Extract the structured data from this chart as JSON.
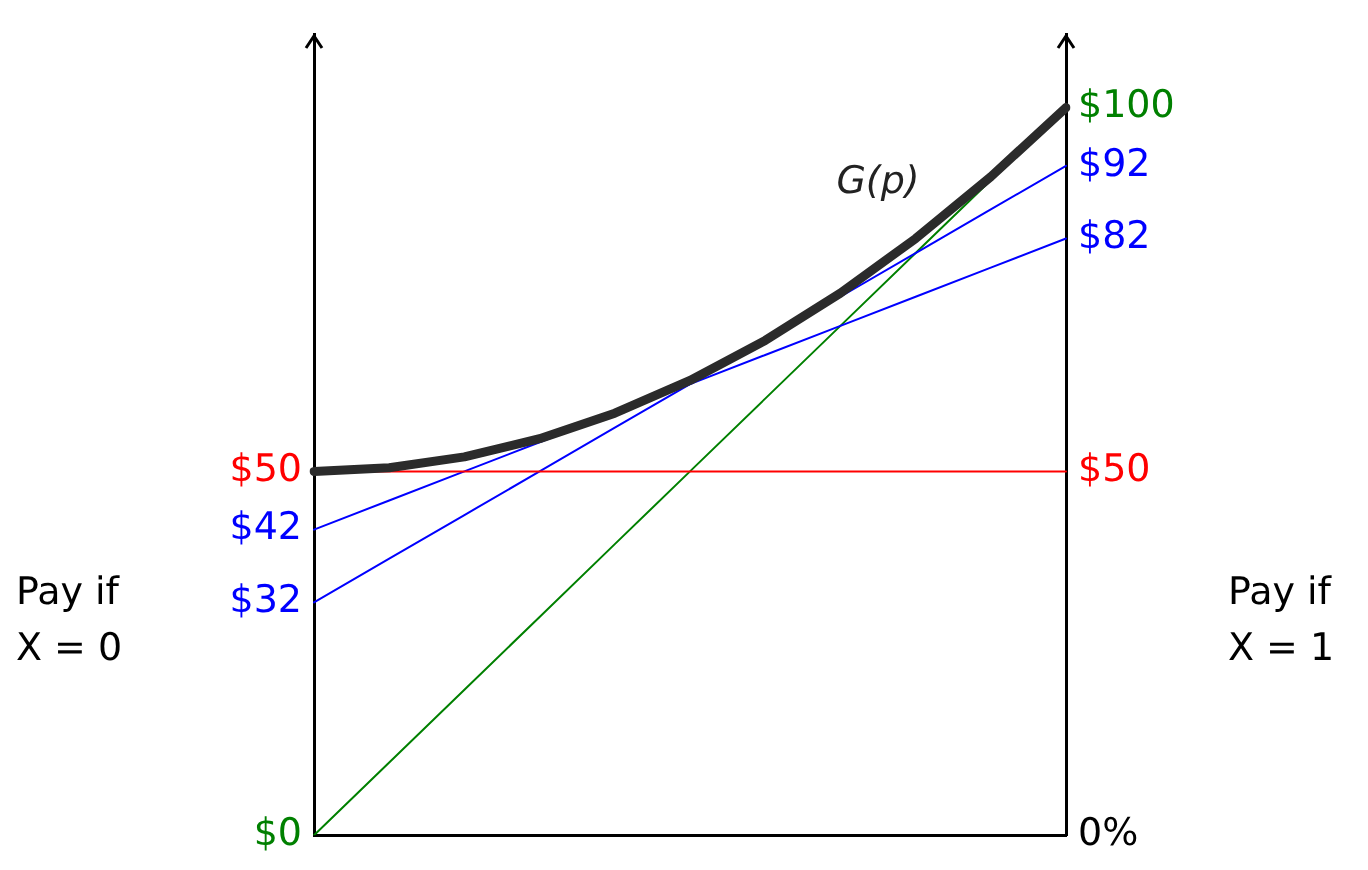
{
  "chart_data": {
    "type": "line",
    "ylabel": "Pay if X = 0",
    "y2label": "Pay if X = 1",
    "categories": [
      null,
      null,
      null,
      null,
      null,
      null,
      null,
      null,
      null,
      null,
      null
    ],
    "series": [
      {
        "color": "#2b2b2b",
        "values": [
          50,
          50.5,
          52,
          54.5,
          58,
          62.5,
          68,
          74.5,
          82,
          90.5,
          100
        ]
      },
      {
        "color": "#ff0000",
        "values": [
          50,
          50,
          50,
          50,
          50,
          50,
          50,
          50,
          50,
          50,
          50
        ]
      },
      {
        "color": "#0000ff",
        "values": [
          42,
          46,
          50,
          54,
          58,
          62,
          66,
          70,
          74,
          78,
          82
        ]
      },
      {
        "color": "#0000ff",
        "values": [
          32,
          38,
          44,
          50,
          56,
          62,
          68,
          74,
          80,
          86,
          92
        ]
      },
      {
        "color": "#008000",
        "values": [
          0,
          10,
          20,
          30,
          40,
          50,
          60,
          70,
          80,
          90,
          100
        ]
      }
    ],
    "ylim": [
      0,
      110
    ],
    "yticks": [
      {
        "value": 0,
        "label": "$0"
      },
      {
        "value": 32,
        "label": "$32"
      },
      {
        "value": 42,
        "label": "$42"
      },
      {
        "value": 50,
        "label": "$50"
      }
    ],
    "y2lim": [
      0,
      110
    ],
    "y2ticks": [
      {
        "value": 0,
        "label": "0%"
      },
      {
        "value": 50,
        "label": "$50"
      },
      {
        "value": 82,
        "label": "$82"
      },
      {
        "value": 92,
        "label": "$92"
      },
      {
        "value": 100,
        "label": "$100"
      }
    ],
    "annotations": [
      "G(p)"
    ],
    "tick_labels": "y",
    "grid": false,
    "legend": false,
    "marker": "none",
    "line_style": "solid"
  }
}
